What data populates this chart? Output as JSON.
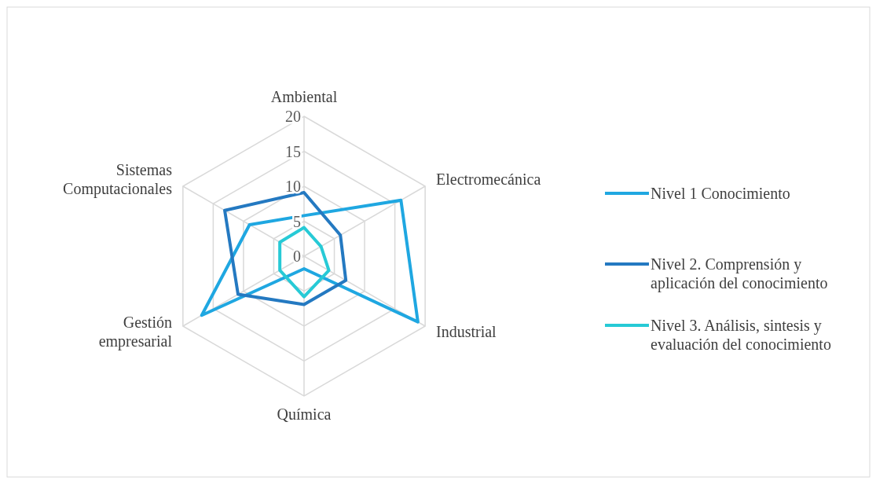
{
  "chart_data": {
    "type": "radar",
    "categories": [
      "Ambiental",
      "Electromecánica",
      "Industrial",
      "Química",
      "Gestión empresarial",
      "Sistemas Computacionales"
    ],
    "ylim": [
      0,
      20
    ],
    "yticks": [
      0,
      5,
      10,
      15,
      20
    ],
    "grid": true,
    "legend": "right",
    "marker": "none",
    "series": [
      {
        "name": "Nivel 1 Conocimiento",
        "color": "#1fa7e1",
        "values": [
          5.8,
          16,
          18.8,
          1.8,
          16.9,
          9
        ]
      },
      {
        "name": "Nivel 2. Comprensión y aplicación del conocimiento",
        "color": "#2479c1",
        "values": [
          9.1,
          6,
          6.9,
          6.9,
          10.9,
          13.1
        ]
      },
      {
        "name": "Nivel 3. Análisis, sintesis y evaluación del conocimiento",
        "color": "#27cad6",
        "values": [
          4.1,
          2.8,
          4.1,
          5.8,
          4,
          4
        ]
      }
    ]
  }
}
